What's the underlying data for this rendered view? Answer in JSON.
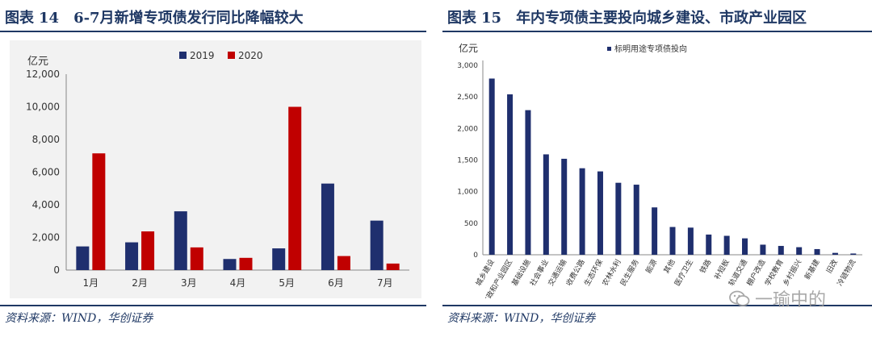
{
  "left": {
    "title_label": "图表",
    "title_num": "14",
    "title_text": "6-7月新增专项债发行同比降幅较大",
    "source": "资料来源：WIND，华创证券"
  },
  "right": {
    "title_label": "图表",
    "title_num": "15",
    "title_text": "年内专项债主要投向城乡建设、市政产业园区",
    "source": "资料来源：WIND，华创证券"
  },
  "watermark": "一瑜中的",
  "colors": {
    "navy": "#1f2f6e",
    "red": "#c00000",
    "title": "#1f3864"
  },
  "chart_data": [
    {
      "type": "bar",
      "unit_label": "亿元",
      "categories": [
        "1月",
        "2月",
        "3月",
        "4月",
        "5月",
        "6月",
        "7月"
      ],
      "series": [
        {
          "name": "2019",
          "color": "#1f2f6e",
          "values": [
            1450,
            1700,
            3600,
            680,
            1330,
            5300,
            3030
          ]
        },
        {
          "name": "2020",
          "color": "#c00000",
          "values": [
            7150,
            2370,
            1390,
            750,
            10000,
            860,
            400
          ]
        }
      ],
      "ylim": [
        0,
        12000
      ],
      "yticks": [
        "0",
        "2,000",
        "4,000",
        "6,000",
        "8,000",
        "10,000",
        "12,000"
      ],
      "legend_position": "top-center",
      "grid": false
    },
    {
      "type": "bar",
      "unit_label": "亿元",
      "categories": [
        "城乡建设",
        "市政和产业园区",
        "基础设施",
        "社会事业",
        "交通运输",
        "收费公路",
        "生态环保",
        "农林水利",
        "民生服务",
        "能源",
        "其他",
        "医疗卫生",
        "铁路",
        "补短板",
        "轨道交通",
        "棚户改造",
        "学校教育",
        "乡村振兴",
        "新基建",
        "旧改",
        "冷链物流"
      ],
      "series": [
        {
          "name": "标明用途专项债投向",
          "color": "#1f2f6e",
          "values": [
            2790,
            2540,
            2290,
            1590,
            1520,
            1370,
            1320,
            1140,
            1110,
            750,
            440,
            430,
            320,
            300,
            260,
            160,
            140,
            120,
            90,
            30,
            20
          ]
        }
      ],
      "ylim": [
        0,
        3000
      ],
      "yticks": [
        "0",
        "500",
        "1,000",
        "1,500",
        "2,000",
        "2,500",
        "3,000"
      ],
      "legend_position": "top-center",
      "grid": false
    }
  ]
}
